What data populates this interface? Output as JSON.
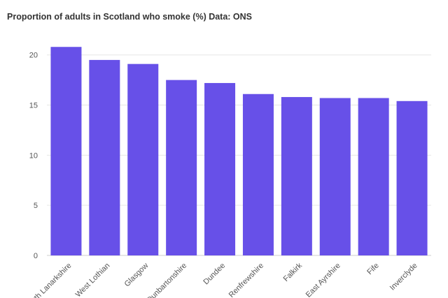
{
  "chart_data": {
    "type": "bar",
    "title": "Proportion of adults in Scotland who smoke (%) Data: ONS",
    "xlabel": "",
    "ylabel": "",
    "categories": [
      "North Lanarkshire",
      "West Lothian",
      "Glasgow",
      "Dunbartonshire",
      "Dundee",
      "Renfrewshire",
      "Falkirk",
      "East Ayrshire",
      "Fife",
      "Inverclyde"
    ],
    "values": [
      20.8,
      19.5,
      19.1,
      17.5,
      17.2,
      16.1,
      15.8,
      15.7,
      15.7,
      15.4
    ],
    "ylim": [
      0,
      22
    ],
    "yticks": [
      0,
      5,
      10,
      15,
      20
    ],
    "grid": true,
    "legend": "none",
    "bar_color": "#6750e8"
  }
}
